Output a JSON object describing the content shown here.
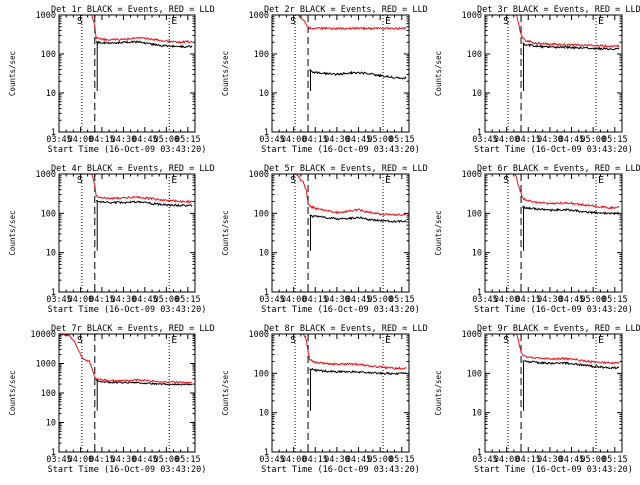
{
  "figure": {
    "xlabel_prefix": "Start Time (",
    "xlabel_time": "16-Oct-09 03:43:20",
    "xlabel_suffix": ")",
    "ylabel": "Counts/sec",
    "title_suffix": " BLACK = Events, RED = LLD",
    "marker_start": "S",
    "marker_end": "E"
  },
  "colors": {
    "events": "#000000",
    "lld": "#e8141c",
    "axes": "#000000",
    "background": "#ffffff"
  },
  "chart_data": [
    {
      "type": "line",
      "title": "Det 1r BLACK = Events, RED = LLD",
      "detector": "Det 1r",
      "xlabel": "Start Time (16-Oct-09 03:43:20)",
      "ylabel": "Counts/sec",
      "yscale": "log",
      "ylim": [
        1,
        1000
      ],
      "xlim": [
        "03:45",
        "05:20"
      ],
      "x_ticks": [
        "03:45",
        "04:00",
        "04:15",
        "04:30",
        "04:45",
        "05:00",
        "05:15"
      ],
      "y_ticks": [
        "1",
        "10",
        "100",
        "1000"
      ],
      "vlines": {
        "dotted": [
          "04:01",
          "05:02"
        ],
        "dashed": [
          "04:10"
        ]
      },
      "series": [
        {
          "name": "LLD",
          "color": "#e8141c",
          "x": [
            "04:08",
            "04:10",
            "04:11",
            "04:13",
            "04:20",
            "04:30",
            "04:40",
            "04:45",
            "04:52",
            "05:00",
            "05:10",
            "05:18"
          ],
          "y": [
            1000,
            520,
            260,
            245,
            230,
            240,
            260,
            250,
            235,
            215,
            200,
            210
          ]
        },
        {
          "name": "Events",
          "color": "#000000",
          "x": [
            "04:11",
            "04:12",
            "04:20",
            "04:30",
            "04:40",
            "04:45",
            "04:52",
            "05:00",
            "05:10",
            "05:18"
          ],
          "y": [
            200,
            195,
            190,
            200,
            205,
            190,
            175,
            160,
            155,
            155
          ]
        }
      ]
    },
    {
      "type": "line",
      "title": "Det 2r BLACK = Events, RED = LLD",
      "detector": "Det 2r",
      "xlabel": "Start Time (16-Oct-09 03:43:20)",
      "ylabel": "Counts/sec",
      "yscale": "log",
      "ylim": [
        1,
        1000
      ],
      "xlim": [
        "03:45",
        "05:20"
      ],
      "x_ticks": [
        "03:45",
        "04:00",
        "04:15",
        "04:30",
        "04:45",
        "05:00",
        "05:15"
      ],
      "y_ticks": [
        "1",
        "10",
        "100",
        "1000"
      ],
      "vlines": {
        "dotted": [
          "04:01",
          "05:02"
        ],
        "dashed": [
          "04:10"
        ]
      },
      "series": [
        {
          "name": "LLD",
          "color": "#e8141c",
          "x": [
            "04:03",
            "04:06",
            "04:08",
            "04:09",
            "04:11",
            "04:20",
            "04:30",
            "04:45",
            "05:00",
            "05:10",
            "05:18"
          ],
          "y": [
            1000,
            800,
            650,
            550,
            460,
            455,
            450,
            455,
            450,
            450,
            455
          ]
        },
        {
          "name": "Events",
          "color": "#000000",
          "x": [
            "04:11",
            "04:13",
            "04:20",
            "04:30",
            "04:40",
            "04:50",
            "05:00",
            "05:10",
            "05:18"
          ],
          "y": [
            40,
            35,
            32,
            30,
            33,
            32,
            28,
            25,
            24
          ]
        }
      ]
    },
    {
      "type": "line",
      "title": "Det 3r BLACK = Events, RED = LLD",
      "detector": "Det 3r",
      "xlabel": "Start Time (16-Oct-09 03:43:20)",
      "ylabel": "Counts/sec",
      "yscale": "log",
      "ylim": [
        1,
        1000
      ],
      "xlim": [
        "03:45",
        "05:20"
      ],
      "x_ticks": [
        "03:45",
        "04:00",
        "04:15",
        "04:30",
        "04:45",
        "05:00",
        "05:15"
      ],
      "y_ticks": [
        "1",
        "10",
        "100",
        "1000"
      ],
      "vlines": {
        "dotted": [
          "04:01",
          "05:02"
        ],
        "dashed": [
          "04:10"
        ]
      },
      "series": [
        {
          "name": "LLD",
          "color": "#e8141c",
          "x": [
            "04:07",
            "04:10",
            "04:13",
            "04:20",
            "04:30",
            "04:40",
            "04:50",
            "05:00",
            "05:10",
            "05:18"
          ],
          "y": [
            1000,
            300,
            220,
            190,
            180,
            175,
            170,
            165,
            160,
            160
          ]
        },
        {
          "name": "Events",
          "color": "#000000",
          "x": [
            "04:11",
            "04:13",
            "04:20",
            "04:30",
            "04:40",
            "04:50",
            "05:00",
            "05:10",
            "05:18"
          ],
          "y": [
            190,
            175,
            160,
            150,
            150,
            145,
            140,
            135,
            135
          ]
        }
      ]
    },
    {
      "type": "line",
      "title": "Det 4r BLACK = Events, RED = LLD",
      "detector": "Det 4r",
      "xlabel": "Start Time (16-Oct-09 03:43:20)",
      "ylabel": "Counts/sec",
      "yscale": "log",
      "ylim": [
        1,
        1000
      ],
      "xlim": [
        "03:45",
        "05:20"
      ],
      "x_ticks": [
        "03:45",
        "04:00",
        "04:15",
        "04:30",
        "04:45",
        "05:00",
        "05:15"
      ],
      "y_ticks": [
        "1",
        "10",
        "100",
        "1000"
      ],
      "vlines": {
        "dotted": [
          "04:01",
          "05:02"
        ],
        "dashed": [
          "04:10"
        ]
      },
      "series": [
        {
          "name": "LLD",
          "color": "#e8141c",
          "x": [
            "04:08",
            "04:10",
            "04:11",
            "04:13",
            "04:20",
            "04:30",
            "04:40",
            "04:45",
            "04:52",
            "05:00",
            "05:10",
            "05:18"
          ],
          "y": [
            1000,
            500,
            280,
            260,
            240,
            250,
            255,
            245,
            230,
            215,
            200,
            195
          ]
        },
        {
          "name": "Events",
          "color": "#000000",
          "x": [
            "04:11",
            "04:12",
            "04:20",
            "04:30",
            "04:40",
            "04:45",
            "04:52",
            "05:00",
            "05:10",
            "05:18"
          ],
          "y": [
            215,
            200,
            190,
            190,
            195,
            185,
            175,
            165,
            160,
            158
          ]
        }
      ]
    },
    {
      "type": "line",
      "title": "Det 5r BLACK = Events, RED = LLD",
      "detector": "Det 5r",
      "xlabel": "Start Time (16-Oct-09 03:43:20)",
      "ylabel": "Counts/sec",
      "yscale": "log",
      "ylim": [
        1,
        1000
      ],
      "xlim": [
        "03:45",
        "05:20"
      ],
      "x_ticks": [
        "03:45",
        "04:00",
        "04:15",
        "04:30",
        "04:45",
        "05:00",
        "05:15"
      ],
      "y_ticks": [
        "1",
        "10",
        "100",
        "1000"
      ],
      "vlines": {
        "dotted": [
          "04:01",
          "05:02"
        ],
        "dashed": [
          "04:10"
        ]
      },
      "series": [
        {
          "name": "LLD",
          "color": "#e8141c",
          "x": [
            "04:02",
            "04:05",
            "04:07",
            "04:09",
            "04:10",
            "04:12",
            "04:20",
            "04:30",
            "04:40",
            "04:45",
            "04:50",
            "05:00",
            "05:10",
            "05:18"
          ],
          "y": [
            1000,
            700,
            600,
            350,
            180,
            145,
            120,
            105,
            115,
            125,
            110,
            95,
            90,
            95
          ]
        },
        {
          "name": "Events",
          "color": "#000000",
          "x": [
            "04:11",
            "04:12",
            "04:20",
            "04:30",
            "04:40",
            "04:45",
            "04:50",
            "05:00",
            "05:10",
            "05:18"
          ],
          "y": [
            90,
            85,
            80,
            72,
            75,
            80,
            72,
            65,
            62,
            62
          ]
        }
      ]
    },
    {
      "type": "line",
      "title": "Det 6r BLACK = Events, RED = LLD",
      "detector": "Det 6r",
      "xlabel": "Start Time (16-Oct-09 03:43:20)",
      "ylabel": "Counts/sec",
      "yscale": "log",
      "ylim": [
        1,
        1000
      ],
      "xlim": [
        "03:45",
        "05:20"
      ],
      "x_ticks": [
        "03:45",
        "04:00",
        "04:15",
        "04:30",
        "04:45",
        "05:00",
        "05:15"
      ],
      "y_ticks": [
        "1",
        "10",
        "100",
        "1000"
      ],
      "vlines": {
        "dotted": [
          "04:01",
          "05:02"
        ],
        "dashed": [
          "04:10"
        ]
      },
      "series": [
        {
          "name": "LLD",
          "color": "#e8141c",
          "x": [
            "04:06",
            "04:09",
            "04:11",
            "04:13",
            "04:20",
            "04:30",
            "04:40",
            "04:45",
            "04:52",
            "05:00",
            "05:10",
            "05:18"
          ],
          "y": [
            1000,
            400,
            250,
            220,
            190,
            175,
            185,
            180,
            165,
            155,
            140,
            140
          ]
        },
        {
          "name": "Events",
          "color": "#000000",
          "x": [
            "04:11",
            "04:13",
            "04:20",
            "04:30",
            "04:40",
            "04:45",
            "04:52",
            "05:00",
            "05:10",
            "05:18"
          ],
          "y": [
            150,
            140,
            130,
            120,
            125,
            120,
            112,
            105,
            100,
            100
          ]
        }
      ]
    },
    {
      "type": "line",
      "title": "Det 7r BLACK = Events, RED = LLD",
      "detector": "Det 7r",
      "xlabel": "Start Time (16-Oct-09 03:43:20)",
      "ylabel": "Counts/sec",
      "yscale": "log",
      "ylim": [
        1,
        10000
      ],
      "xlim": [
        "03:45",
        "05:20"
      ],
      "x_ticks": [
        "03:45",
        "04:00",
        "04:15",
        "04:30",
        "04:45",
        "05:00",
        "05:15"
      ],
      "y_ticks": [
        "1",
        "10",
        "100",
        "1000",
        "10000"
      ],
      "vlines": {
        "dotted": [
          "04:01",
          "05:02"
        ],
        "dashed": [
          "04:10"
        ]
      },
      "series": [
        {
          "name": "LLD",
          "color": "#e8141c",
          "x": [
            "03:45",
            "03:52",
            "03:56",
            "04:00",
            "04:03",
            "04:06",
            "04:08",
            "04:10",
            "04:11",
            "04:13",
            "04:20",
            "04:30",
            "04:40",
            "04:45",
            "04:52",
            "05:00",
            "05:10",
            "05:18"
          ],
          "y": [
            10000,
            9000,
            5500,
            2000,
            1300,
            1200,
            700,
            350,
            300,
            290,
            270,
            260,
            280,
            270,
            250,
            240,
            230,
            225
          ]
        },
        {
          "name": "Events",
          "color": "#000000",
          "x": [
            "04:11",
            "04:12",
            "04:20",
            "04:30",
            "04:40",
            "04:45",
            "04:52",
            "05:00",
            "05:10",
            "05:18"
          ],
          "y": [
            280,
            250,
            230,
            225,
            230,
            215,
            205,
            200,
            195,
            195
          ]
        }
      ]
    },
    {
      "type": "line",
      "title": "Det 8r BLACK = Events, RED = LLD",
      "detector": "Det 8r",
      "xlabel": "Start Time (16-Oct-09 03:43:20)",
      "ylabel": "Counts/sec",
      "yscale": "log",
      "ylim": [
        1,
        1000
      ],
      "xlim": [
        "03:45",
        "05:20"
      ],
      "x_ticks": [
        "03:45",
        "04:00",
        "04:15",
        "04:30",
        "04:45",
        "05:00",
        "05:15"
      ],
      "y_ticks": [
        "1",
        "10",
        "100",
        "1000"
      ],
      "vlines": {
        "dotted": [
          "04:01",
          "05:02"
        ],
        "dashed": [
          "04:10"
        ]
      },
      "series": [
        {
          "name": "LLD",
          "color": "#e8141c",
          "x": [
            "04:06",
            "04:08",
            "04:09",
            "04:10",
            "04:11",
            "04:13",
            "04:20",
            "04:30",
            "04:40",
            "04:45",
            "04:52",
            "05:00",
            "05:10",
            "05:18"
          ],
          "y": [
            1000,
            850,
            650,
            350,
            230,
            200,
            180,
            170,
            175,
            170,
            155,
            145,
            135,
            135
          ]
        },
        {
          "name": "Events",
          "color": "#000000",
          "x": [
            "04:11",
            "04:13",
            "04:20",
            "04:30",
            "04:40",
            "04:45",
            "04:52",
            "05:00",
            "05:10",
            "05:18"
          ],
          "y": [
            130,
            125,
            115,
            110,
            110,
            108,
            104,
            100,
            98,
            100
          ]
        }
      ]
    },
    {
      "type": "line",
      "title": "Det 9r BLACK = Events, RED = LLD",
      "detector": "Det 9r",
      "xlabel": "Start Time (16-Oct-09 03:43:20)",
      "ylabel": "Counts/sec",
      "yscale": "log",
      "ylim": [
        1,
        1000
      ],
      "xlim": [
        "03:45",
        "05:20"
      ],
      "x_ticks": [
        "03:45",
        "04:00",
        "04:15",
        "04:30",
        "04:45",
        "05:00",
        "05:15"
      ],
      "y_ticks": [
        "1",
        "10",
        "100",
        "1000"
      ],
      "vlines": {
        "dotted": [
          "04:01",
          "05:02"
        ],
        "dashed": [
          "04:10"
        ]
      },
      "series": [
        {
          "name": "LLD",
          "color": "#e8141c",
          "x": [
            "04:07",
            "04:10",
            "04:12",
            "04:20",
            "04:30",
            "04:40",
            "04:45",
            "04:52",
            "05:00",
            "05:10",
            "05:18"
          ],
          "y": [
            1000,
            350,
            270,
            250,
            230,
            240,
            230,
            210,
            195,
            185,
            180
          ]
        },
        {
          "name": "Events",
          "color": "#000000",
          "x": [
            "04:11",
            "04:12",
            "04:20",
            "04:30",
            "04:40",
            "04:45",
            "04:52",
            "05:00",
            "05:10",
            "05:18"
          ],
          "y": [
            210,
            200,
            190,
            180,
            185,
            175,
            165,
            150,
            140,
            140
          ]
        }
      ]
    }
  ]
}
